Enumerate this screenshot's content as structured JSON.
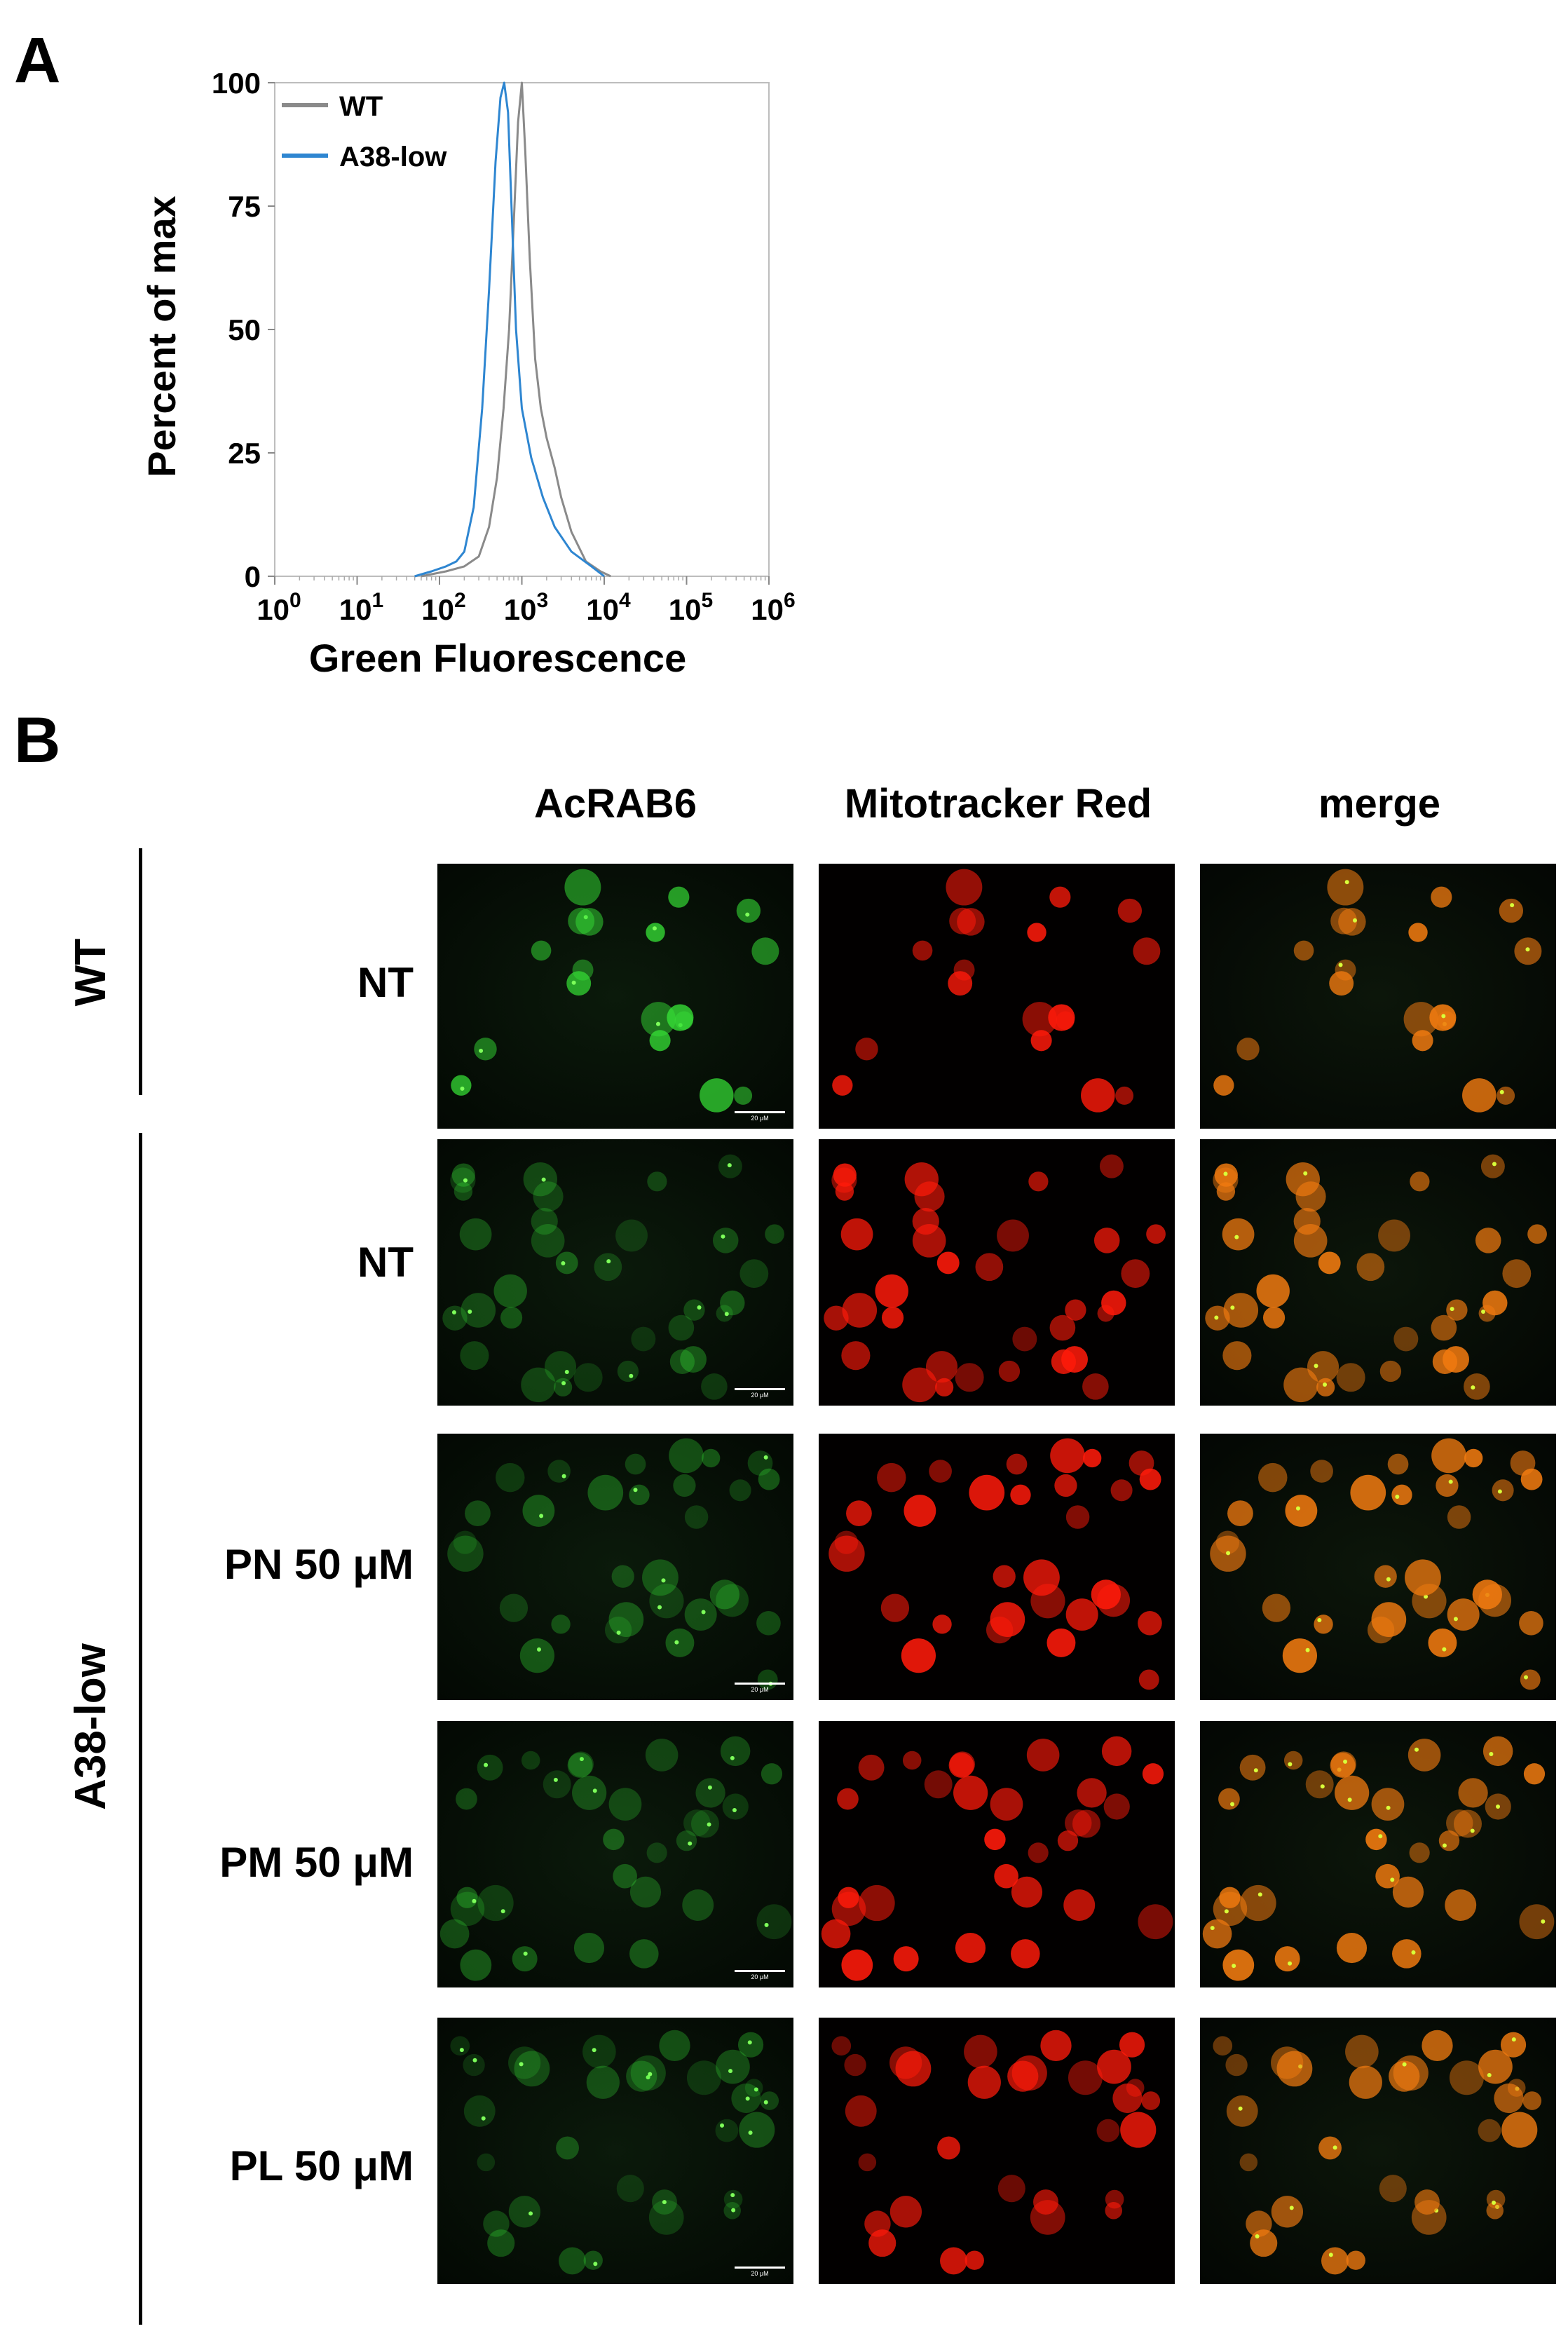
{
  "panel_a": {
    "letter": "A"
  },
  "panel_b": {
    "letter": "B"
  },
  "chart_data": {
    "type": "line",
    "xlabel": "Green Fluorescence",
    "ylabel": "Percent of max",
    "x_scale": "log",
    "xlim": [
      1,
      1000000
    ],
    "ylim": [
      0,
      100
    ],
    "x_ticks": [
      {
        "base": "10",
        "exp": "0"
      },
      {
        "base": "10",
        "exp": "1"
      },
      {
        "base": "10",
        "exp": "2"
      },
      {
        "base": "10",
        "exp": "3"
      },
      {
        "base": "10",
        "exp": "4"
      },
      {
        "base": "10",
        "exp": "5"
      },
      {
        "base": "10",
        "exp": "6"
      }
    ],
    "y_ticks": [
      "0",
      "25",
      "50",
      "75",
      "100"
    ],
    "legend_position": "top-left",
    "series": [
      {
        "name": "WT",
        "color": "#8a8a8a",
        "points": [
          [
            60,
            0
          ],
          [
            120,
            1
          ],
          [
            200,
            2
          ],
          [
            300,
            4
          ],
          [
            400,
            10
          ],
          [
            500,
            20
          ],
          [
            600,
            34
          ],
          [
            700,
            50
          ],
          [
            800,
            72
          ],
          [
            900,
            92
          ],
          [
            1000,
            100
          ],
          [
            1100,
            86
          ],
          [
            1250,
            64
          ],
          [
            1450,
            44
          ],
          [
            1700,
            34
          ],
          [
            2000,
            28
          ],
          [
            2500,
            22
          ],
          [
            3000,
            16
          ],
          [
            4000,
            9
          ],
          [
            6000,
            3
          ],
          [
            9000,
            1
          ],
          [
            12000,
            0
          ]
        ]
      },
      {
        "name": "A38-low",
        "color": "#2e86d1",
        "points": [
          [
            50,
            0
          ],
          [
            80,
            1
          ],
          [
            120,
            2
          ],
          [
            160,
            3
          ],
          [
            200,
            5
          ],
          [
            260,
            14
          ],
          [
            330,
            34
          ],
          [
            400,
            58
          ],
          [
            480,
            84
          ],
          [
            550,
            97
          ],
          [
            610,
            100
          ],
          [
            680,
            94
          ],
          [
            760,
            72
          ],
          [
            850,
            50
          ],
          [
            1000,
            34
          ],
          [
            1300,
            24
          ],
          [
            1800,
            16
          ],
          [
            2500,
            10
          ],
          [
            4000,
            5
          ],
          [
            7000,
            2
          ],
          [
            10000,
            0
          ]
        ]
      }
    ]
  },
  "columns": [
    "AcRAB6",
    "Mitotracker Red",
    "merge"
  ],
  "groups": [
    {
      "label": "WT"
    },
    {
      "label": "A38-low"
    }
  ],
  "rows": [
    {
      "label": "NT"
    },
    {
      "label": "NT"
    },
    {
      "label": "PN 50 μM"
    },
    {
      "label": "PM 50 μM"
    },
    {
      "label": "PL 50 μM"
    }
  ],
  "scalebar_label": "20 μM",
  "colors": {
    "green_channel": "#36e036",
    "red_channel": "#ff1a0a",
    "merge_channel": "#f07a10"
  }
}
